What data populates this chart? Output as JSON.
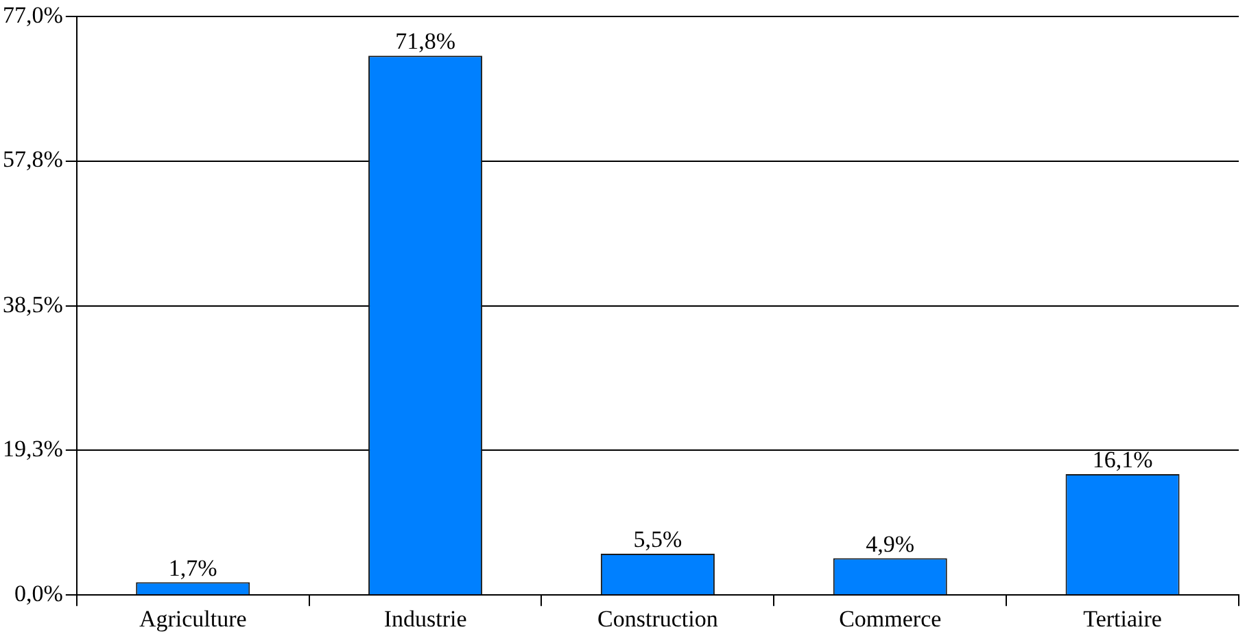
{
  "chart_data": {
    "type": "bar",
    "categories": [
      "Agriculture",
      "Industrie",
      "Construction",
      "Commerce",
      "Tertiaire"
    ],
    "values": [
      1.7,
      71.8,
      5.5,
      4.9,
      16.1
    ],
    "value_labels": [
      "1,7%",
      "71,8%",
      "5,5%",
      "4,9%",
      "16,1%"
    ],
    "color": "#0080ff",
    "ylim": [
      0,
      77
    ],
    "yticks": [
      {
        "value": 0,
        "label": "0,0%"
      },
      {
        "value": 19.3,
        "label": "19,3%"
      },
      {
        "value": 38.5,
        "label": "38,5%"
      },
      {
        "value": 57.8,
        "label": "57,8%"
      },
      {
        "value": 77,
        "label": "77,0%"
      }
    ],
    "grid": "y"
  }
}
